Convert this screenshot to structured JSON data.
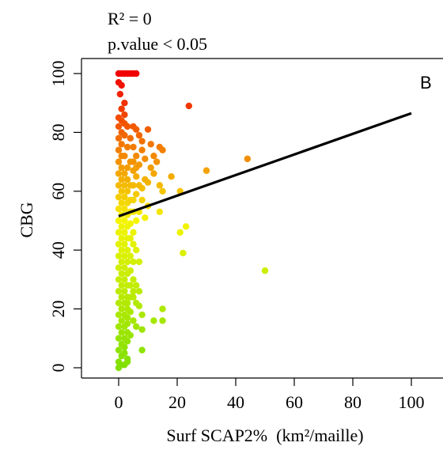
{
  "chart_data": {
    "type": "scatter",
    "stats": [
      "R² = 0",
      "p.value < 0.05"
    ],
    "panel_label": "B",
    "xlabel": "Surf SCAP2%  (km²/maille)",
    "ylabel": "CBG",
    "xlim": [
      -12,
      108
    ],
    "ylim": [
      -3,
      105
    ],
    "x_ticks": [
      0,
      20,
      40,
      60,
      80,
      100
    ],
    "y_ticks": [
      0,
      20,
      40,
      60,
      80,
      100
    ],
    "x_tick_labels": [
      "0",
      "20",
      "40",
      "60",
      "80",
      "100"
    ],
    "y_tick_labels": [
      "0",
      "20",
      "40",
      "60",
      "80",
      "100"
    ],
    "grid": false,
    "color_scale": {
      "low": "#80e000",
      "mid": "#f5f500",
      "high": "#f00000"
    },
    "regression_line": {
      "x": [
        0,
        100
      ],
      "y": [
        51.5,
        86.5
      ],
      "color": "#000000"
    },
    "points": [
      [
        0,
        100
      ],
      [
        1,
        100
      ],
      [
        2,
        100
      ],
      [
        3,
        100
      ],
      [
        4,
        100
      ],
      [
        5,
        100
      ],
      [
        6,
        100
      ],
      [
        0,
        97
      ],
      [
        1,
        96
      ],
      [
        0.5,
        93
      ],
      [
        2,
        90
      ],
      [
        1,
        88
      ],
      [
        0,
        85
      ],
      [
        1,
        84
      ],
      [
        2,
        83
      ],
      [
        3,
        82
      ],
      [
        5,
        82
      ],
      [
        6,
        81
      ],
      [
        10,
        81
      ],
      [
        24,
        89
      ],
      [
        4,
        78
      ],
      [
        7,
        79
      ],
      [
        11,
        76
      ],
      [
        14,
        75
      ],
      [
        15,
        74
      ],
      [
        8,
        77
      ],
      [
        12,
        72
      ],
      [
        13,
        70
      ],
      [
        18,
        65
      ],
      [
        30,
        67
      ],
      [
        44,
        71
      ],
      [
        9,
        71
      ],
      [
        11,
        68
      ],
      [
        12,
        66
      ],
      [
        14,
        62
      ],
      [
        15,
        60
      ],
      [
        21,
        60
      ],
      [
        8,
        61
      ],
      [
        10,
        63
      ],
      [
        6,
        65
      ],
      [
        6,
        59
      ],
      [
        8,
        57
      ],
      [
        10,
        55
      ],
      [
        14,
        53
      ],
      [
        7,
        53
      ],
      [
        9,
        51
      ],
      [
        6,
        50
      ],
      [
        4,
        49
      ],
      [
        23,
        48
      ],
      [
        21,
        46
      ],
      [
        5,
        46
      ],
      [
        4,
        44
      ],
      [
        5,
        42
      ],
      [
        22,
        39
      ],
      [
        6,
        40
      ],
      [
        7,
        36
      ],
      [
        50,
        33
      ],
      [
        4,
        33
      ],
      [
        5,
        30
      ],
      [
        6,
        28
      ],
      [
        7,
        26
      ],
      [
        5,
        24
      ],
      [
        3,
        22
      ],
      [
        6,
        22
      ],
      [
        7,
        21
      ],
      [
        15,
        20
      ],
      [
        4,
        19
      ],
      [
        8,
        18
      ],
      [
        12,
        16
      ],
      [
        15,
        16
      ],
      [
        5,
        16
      ],
      [
        3,
        15
      ],
      [
        6,
        14
      ],
      [
        8,
        13
      ],
      [
        4,
        11
      ],
      [
        3,
        9
      ],
      [
        2,
        7
      ],
      [
        8,
        6
      ],
      [
        2,
        5
      ],
      [
        3,
        3
      ],
      [
        0,
        0
      ],
      [
        1,
        1
      ],
      [
        2,
        1
      ],
      [
        3,
        2
      ],
      [
        0,
        2
      ],
      [
        1,
        4
      ],
      [
        0,
        6
      ],
      [
        1,
        8
      ],
      [
        0,
        10
      ],
      [
        1,
        12
      ],
      [
        0,
        14
      ],
      [
        1,
        16
      ],
      [
        0,
        18
      ],
      [
        1,
        20
      ],
      [
        0,
        22
      ],
      [
        1,
        24
      ],
      [
        0,
        26
      ],
      [
        1,
        28
      ],
      [
        0,
        30
      ],
      [
        1,
        32
      ],
      [
        0,
        34
      ],
      [
        1,
        36
      ],
      [
        0,
        38
      ],
      [
        1,
        40
      ],
      [
        0,
        42
      ],
      [
        1,
        44
      ],
      [
        0,
        46
      ],
      [
        1,
        48
      ],
      [
        0,
        50
      ],
      [
        1,
        52
      ],
      [
        0,
        54
      ],
      [
        1,
        56
      ],
      [
        0,
        58
      ],
      [
        1,
        60
      ],
      [
        0,
        62
      ],
      [
        1,
        64
      ],
      [
        0,
        66
      ],
      [
        1,
        68
      ],
      [
        0,
        70
      ],
      [
        1,
        72
      ],
      [
        0,
        74
      ],
      [
        1,
        76
      ],
      [
        0,
        78
      ],
      [
        1,
        80
      ],
      [
        0,
        82
      ],
      [
        2,
        86
      ],
      [
        2,
        79
      ],
      [
        3,
        75
      ],
      [
        2,
        72
      ],
      [
        4,
        70
      ],
      [
        3,
        68
      ],
      [
        2,
        66
      ],
      [
        3,
        64
      ],
      [
        2,
        62
      ],
      [
        3,
        60
      ],
      [
        2,
        58
      ],
      [
        3,
        56
      ],
      [
        2,
        54
      ],
      [
        3,
        52
      ],
      [
        2,
        50
      ],
      [
        3,
        48
      ],
      [
        2,
        46
      ],
      [
        3,
        44
      ],
      [
        2,
        42
      ],
      [
        3,
        40
      ],
      [
        2,
        38
      ],
      [
        3,
        36
      ],
      [
        2,
        34
      ],
      [
        3,
        32
      ],
      [
        2,
        30
      ],
      [
        3,
        28
      ],
      [
        2,
        26
      ],
      [
        3,
        24
      ],
      [
        2,
        22
      ],
      [
        3,
        20
      ],
      [
        2,
        18
      ],
      [
        3,
        17
      ],
      [
        2,
        14
      ],
      [
        3,
        12
      ],
      [
        2,
        10
      ],
      [
        5,
        75
      ],
      [
        5,
        70
      ],
      [
        5,
        67
      ],
      [
        5,
        62
      ],
      [
        5,
        57
      ],
      [
        5,
        53
      ],
      [
        4,
        62
      ],
      [
        4,
        57
      ],
      [
        4,
        53
      ],
      [
        4,
        38
      ],
      [
        4,
        28
      ],
      [
        4,
        24
      ],
      [
        5,
        36
      ],
      [
        5,
        26
      ],
      [
        6,
        72
      ],
      [
        6,
        68
      ],
      [
        7,
        62
      ],
      [
        7,
        69
      ],
      [
        8,
        74
      ],
      [
        9,
        64
      ]
    ]
  }
}
